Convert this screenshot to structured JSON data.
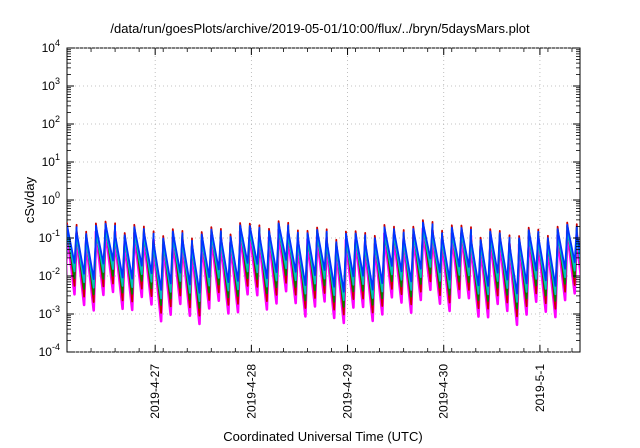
{
  "chart_data": {
    "type": "line",
    "title": "/data/run/goesPlots/archive/2019-05-01/10:00/flux/../bryn/5daysMars.plot",
    "xlabel": "Coordinated Universal Time (UTC)",
    "ylabel": "cSv/day",
    "yscale": "log",
    "ylim": [
      0.0001,
      10000
    ],
    "xlim": [
      "2019-04-26T02:00",
      "2019-05-01T10:00"
    ],
    "y_ticks": [
      {
        "base": "10",
        "exp": "4"
      },
      {
        "base": "10",
        "exp": "3"
      },
      {
        "base": "10",
        "exp": "2"
      },
      {
        "base": "10",
        "exp": "1"
      },
      {
        "base": "10",
        "exp": "0"
      },
      {
        "base": "10",
        "exp": "-1"
      },
      {
        "base": "10",
        "exp": "-2"
      },
      {
        "base": "10",
        "exp": "-3"
      },
      {
        "base": "10",
        "exp": "-4"
      }
    ],
    "x_ticks": [
      "2019-4-27",
      "2019-4-28",
      "2019-4-29",
      "2019-4-30",
      "2019-5-1"
    ],
    "grid": true,
    "series_style": "sawtooth, ~10 cycles per day",
    "series": [
      {
        "color": "#ff00ff",
        "peak": 0.09,
        "trough": 0.0015
      },
      {
        "color": "#cc0000",
        "peak": 0.15,
        "trough": 0.0025
      },
      {
        "color": "#008000",
        "peak": 0.12,
        "trough": 0.004
      },
      {
        "color": "#00c0c0",
        "peak": 0.1,
        "trough": 0.006
      },
      {
        "color": "#0033ff",
        "peak": 0.13,
        "trough": 0.01
      }
    ]
  }
}
